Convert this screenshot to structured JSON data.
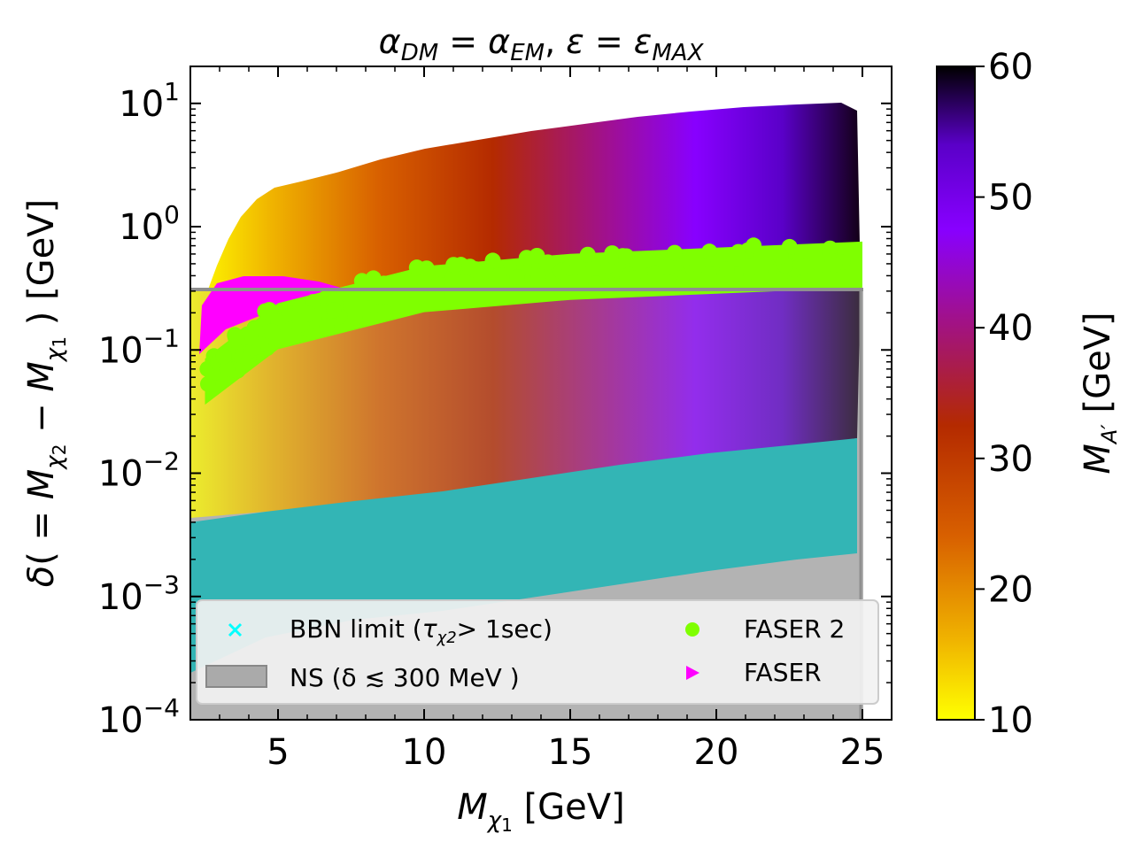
{
  "chart_data": {
    "type": "scatter",
    "title": "αDM = αEM, ε = εMAX",
    "xlabel": "Mχ1 [GeV]",
    "ylabel": "δ( = Mχ2 − Mχ1 ) [GeV]",
    "xlim": [
      2.0,
      26.0
    ],
    "ylim_log10": [
      -4,
      1.3
    ],
    "xticks": [
      {
        "value": 5,
        "label": "5"
      },
      {
        "value": 10,
        "label": "10"
      },
      {
        "value": 15,
        "label": "15"
      },
      {
        "value": 20,
        "label": "20"
      },
      {
        "value": 25,
        "label": "25"
      }
    ],
    "yticks": [
      {
        "exp": -4,
        "label": "10",
        "sup": "−4"
      },
      {
        "exp": -3,
        "label": "10",
        "sup": "−3"
      },
      {
        "exp": -2,
        "label": "10",
        "sup": "−2"
      },
      {
        "exp": -1,
        "label": "10",
        "sup": "−1"
      },
      {
        "exp": 0,
        "label": "10",
        "sup": "0"
      },
      {
        "exp": 1,
        "label": "10",
        "sup": "1"
      }
    ],
    "colorbar": {
      "label": "MA′ [GeV]",
      "min": 10,
      "max": 60,
      "ticks": [
        {
          "value": 10,
          "label": "10"
        },
        {
          "value": 20,
          "label": "20"
        },
        {
          "value": 30,
          "label": "30"
        },
        {
          "value": 40,
          "label": "40"
        },
        {
          "value": 50,
          "label": "50"
        },
        {
          "value": 60,
          "label": "60"
        }
      ],
      "stops": [
        "#ffff00",
        "#f0b400",
        "#d86000",
        "#b42a00",
        "#a01090",
        "#8800ff",
        "#5a00c8",
        "#000000"
      ]
    },
    "ns_limit_delta_GeV": 0.3,
    "series": [
      {
        "name": "BBN limit (τχ2 > 1sec)",
        "color": "#33b5b5",
        "marker": "x",
        "region": {
          "x": [
            2,
            25
          ],
          "logy_low_at_x2": -4.0,
          "logy_low_at_x25": -2.6,
          "logy_high_at_x2": -2.4,
          "logy_high_at_x25": -1.75
        }
      },
      {
        "name": "FASER 2",
        "color": "#7fff00",
        "marker": "circle",
        "band": [
          {
            "x": 2.5,
            "logy": -1.2
          },
          {
            "x": 5,
            "logy": -0.75
          },
          {
            "x": 10,
            "logy": -0.45
          },
          {
            "x": 15,
            "logy": -0.35
          },
          {
            "x": 20,
            "logy": -0.3
          },
          {
            "x": 25,
            "logy": -0.25
          }
        ]
      },
      {
        "name": "FASER",
        "color": "#ff00ff",
        "marker": "triangle-right",
        "region": {
          "x": [
            2.5,
            7
          ],
          "logy": [
            -0.95,
            -0.5
          ]
        }
      }
    ],
    "legend": {
      "position": "lower-left",
      "entries": [
        {
          "label": "BBN limit (τχ2 > 1sec)",
          "text": "BBN limit (",
          "sym": "τ",
          "sub": "χ2",
          "tail": "> 1sec)",
          "color": "#00ffff",
          "marker": "x"
        },
        {
          "label": "NS (δ ≲ 300 MeV )",
          "text": "NS (δ ≲ 300 MeV )",
          "color": "#aaaaaa",
          "marker": "rect"
        },
        {
          "label": "FASER 2",
          "text": "FASER 2",
          "color": "#7fff00",
          "marker": "circle"
        },
        {
          "label": "FASER",
          "text": "FASER",
          "color": "#ff00ff",
          "marker": "triangle-right"
        }
      ]
    }
  }
}
